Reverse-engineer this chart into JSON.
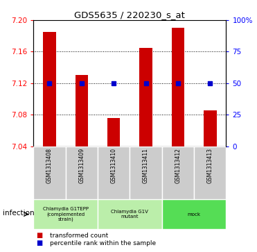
{
  "title": "GDS5635 / 220230_s_at",
  "samples": [
    "GSM1313408",
    "GSM1313409",
    "GSM1313410",
    "GSM1313411",
    "GSM1313412",
    "GSM1313413"
  ],
  "bar_values": [
    7.185,
    7.13,
    7.076,
    7.165,
    7.19,
    7.085
  ],
  "percentile_y": [
    7.12,
    7.12,
    7.12,
    7.12,
    7.12,
    7.12
  ],
  "ylim": [
    7.04,
    7.2
  ],
  "yticks_left": [
    7.04,
    7.08,
    7.12,
    7.16,
    7.2
  ],
  "yticks_right": [
    0,
    25,
    50,
    75,
    100
  ],
  "bar_color": "#cc0000",
  "dot_color": "#0000cc",
  "bar_bottom": 7.04,
  "group_defs": [
    {
      "start": 0,
      "end": 1,
      "color": "#bbeeaa",
      "label": "Chlamydia G1TEPP\n(complemented\nstrain)"
    },
    {
      "start": 2,
      "end": 3,
      "color": "#bbeeaa",
      "label": "Chlamydia G1V\nmutant"
    },
    {
      "start": 4,
      "end": 5,
      "color": "#55dd55",
      "label": "mock"
    }
  ],
  "sample_cell_color": "#cccccc",
  "factor_label": "infection",
  "legend_red_label": "transformed count",
  "legend_blue_label": "percentile rank within the sample"
}
